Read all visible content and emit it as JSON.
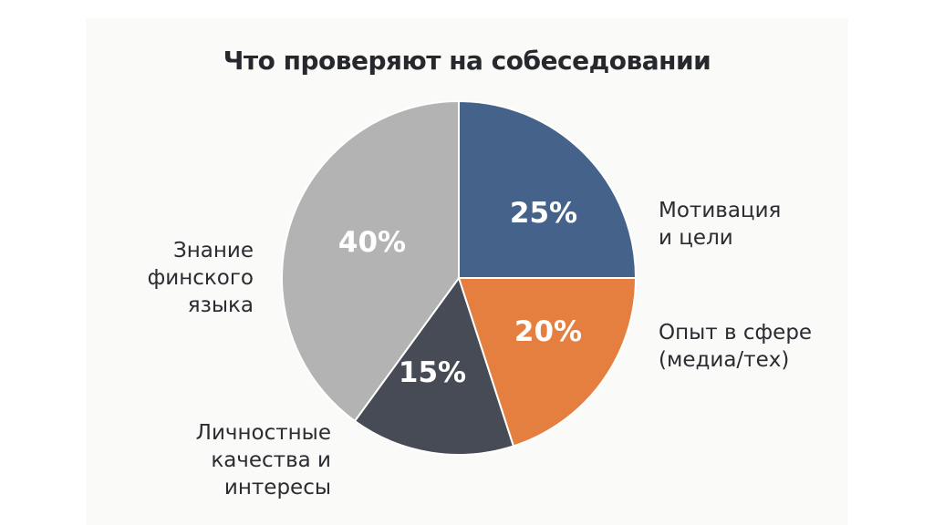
{
  "chart_data": {
    "type": "pie",
    "title": "Что проверяют на собеседовании",
    "start_angle_deg": 0,
    "direction": "clockwise",
    "legend": "labels-beside-slices",
    "slices": [
      {
        "label": [
          "Мотивация",
          "и цели"
        ],
        "value": 25,
        "value_label": "25%",
        "color": "#44628a"
      },
      {
        "label": [
          "Опыт в сфере",
          "(медиа/тех)"
        ],
        "value": 20,
        "value_label": "20%",
        "color": "#e57f3f"
      },
      {
        "label": [
          "Личностные",
          "качества и",
          "интересы"
        ],
        "value": 15,
        "value_label": "15%",
        "color": "#464b55"
      },
      {
        "label": [
          "Знание",
          "финского",
          "языка"
        ],
        "value": 40,
        "value_label": "40%",
        "color": "#b3b3b3"
      }
    ]
  }
}
